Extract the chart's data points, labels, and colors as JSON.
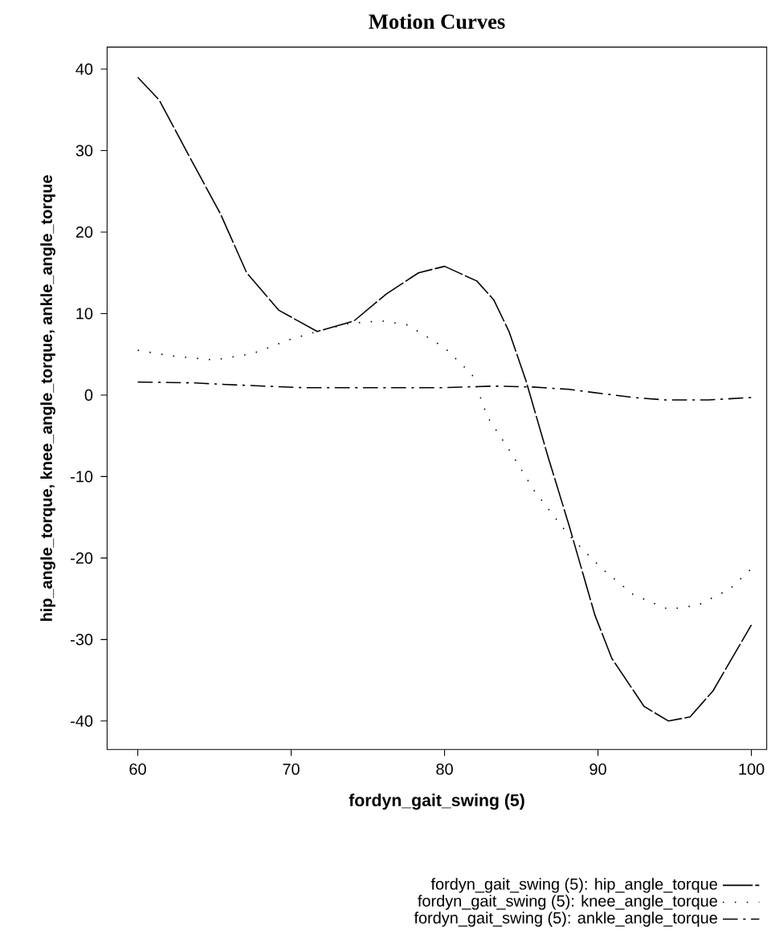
{
  "chart_data": {
    "type": "line",
    "title": "Motion Curves",
    "xlabel": "fordyn_gait_swing (5)",
    "ylabel": "hip_angle_torque, knee_angle_torque, ankle_angle_torque",
    "xlim": [
      58,
      101
    ],
    "ylim": [
      -43.5,
      42.7
    ],
    "xticks": [
      60,
      70,
      80,
      90,
      100
    ],
    "yticks": [
      -40,
      -30,
      -20,
      -10,
      0,
      10,
      20,
      30,
      40
    ],
    "grid": false,
    "legend": "bottom",
    "marker": "none",
    "series": [
      {
        "name": "fordyn_gait_swing (5): hip_angle_torque",
        "color": "#000000",
        "line_style": "dashed",
        "x": [
          60,
          61.4,
          63.3,
          65.4,
          67.1,
          69.2,
          71.7,
          74.1,
          76.2,
          78.3,
          80.0,
          82.1,
          83.2,
          84.2,
          85.3,
          86.7,
          88.1,
          89.8,
          90.9,
          93.0,
          94.6,
          96.0,
          97.5,
          100
        ],
        "values": [
          39.0,
          36.2,
          29.5,
          22.2,
          15.0,
          10.4,
          7.8,
          9.1,
          12.4,
          15.0,
          15.8,
          14.0,
          11.7,
          7.8,
          1.8,
          -7.3,
          -15.9,
          -27.0,
          -32.3,
          -38.2,
          -40.0,
          -39.5,
          -36.3,
          -28.2
        ]
      },
      {
        "name": "fordyn_gait_swing (5): knee_angle_torque",
        "color": "#000000",
        "line_style": "dotted",
        "x": [
          60,
          62.2,
          65.0,
          67.5,
          69.9,
          71.7,
          73.8,
          75.9,
          77.6,
          80.0,
          81.8,
          82.8,
          84.2,
          85.9,
          88.1,
          90.2,
          92.3,
          94.6,
          96.5,
          98.6,
          100
        ],
        "values": [
          5.5,
          4.8,
          4.3,
          5.1,
          6.8,
          7.8,
          8.8,
          9.1,
          8.6,
          5.8,
          2.5,
          -2.7,
          -6.7,
          -11.9,
          -17.2,
          -21.2,
          -24.5,
          -26.3,
          -25.8,
          -23.8,
          -21.3
        ]
      },
      {
        "name": "fordyn_gait_swing (5): ankle_angle_torque",
        "color": "#000000",
        "line_style": "dashdot",
        "x": [
          60,
          63.6,
          65.7,
          68.2,
          70.9,
          74.5,
          79.7,
          83.2,
          85.6,
          88.1,
          90.2,
          92.3,
          94.4,
          97.2,
          100
        ],
        "values": [
          1.6,
          1.5,
          1.3,
          1.1,
          0.9,
          0.9,
          0.9,
          1.1,
          1.0,
          0.7,
          0.2,
          -0.3,
          -0.6,
          -0.6,
          -0.3
        ]
      }
    ]
  }
}
